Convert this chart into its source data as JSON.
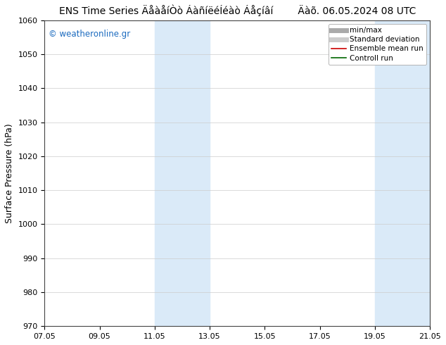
{
  "title": "ENS Time Series ÄåàåíÒò ÁàñíëéÍéàò Áåçíâí        Äàõ. 06.05.2024 08 UTC",
  "ylabel": "Surface Pressure (hPa)",
  "ylim": [
    970,
    1060
  ],
  "yticks": [
    970,
    980,
    990,
    1000,
    1010,
    1020,
    1030,
    1040,
    1050,
    1060
  ],
  "xlim": [
    0,
    14
  ],
  "xtick_labels": [
    "07.05",
    "09.05",
    "11.05",
    "13.05",
    "15.05",
    "17.05",
    "19.05",
    "21.05"
  ],
  "xtick_positions": [
    0,
    2,
    4,
    6,
    8,
    10,
    12,
    14
  ],
  "shaded_regions": [
    {
      "x_start": 4,
      "x_end": 6,
      "color": "#daeaf8"
    },
    {
      "x_start": 12,
      "x_end": 14,
      "color": "#daeaf8"
    }
  ],
  "watermark": "© weatheronline.gr",
  "watermark_color": "#1a6abf",
  "legend_items": [
    {
      "label": "min/max",
      "color": "#aaaaaa",
      "lw": 5,
      "linestyle": "-"
    },
    {
      "label": "Standard deviation",
      "color": "#cccccc",
      "lw": 5,
      "linestyle": "-"
    },
    {
      "label": "Ensemble mean run",
      "color": "#cc0000",
      "lw": 1.2,
      "linestyle": "-"
    },
    {
      "label": "Controll run",
      "color": "#006600",
      "lw": 1.2,
      "linestyle": "-"
    }
  ],
  "bg_color": "#ffffff",
  "plot_bg_color": "#ffffff",
  "title_fontsize": 10,
  "tick_fontsize": 8,
  "ylabel_fontsize": 9,
  "legend_fontsize": 7.5
}
